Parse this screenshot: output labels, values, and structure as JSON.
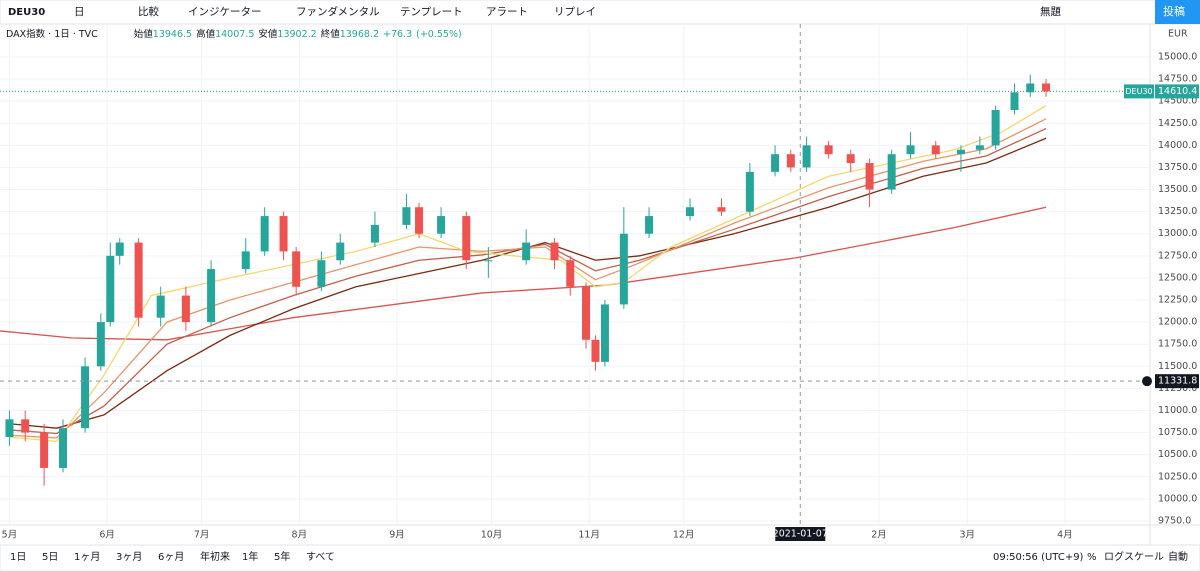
{
  "ui": {
    "toolbar": [
      "DEU30",
      "日",
      "比較",
      "インジケーター",
      "ファンダメンタル",
      "テンプレート",
      "アラート",
      "リプレイ",
      "無題",
      "投稿"
    ],
    "legend": {
      "symbol": "DAX指数 · 1日 · TVC",
      "open_label": "始値",
      "open": 13946.5,
      "high_label": "高値",
      "high": 14007.5,
      "low_label": "安値",
      "low": 13902.2,
      "close_label": "終値",
      "close": 13968.2,
      "change": "+76.3",
      "change_pct": "(+0.55%)"
    },
    "currency": "EUR",
    "ranges": [
      "1日",
      "5日",
      "1ヶ月",
      "3ヶ月",
      "6ヶ月",
      "年初来",
      "1年",
      "5年",
      "すべて"
    ],
    "clock": "09:50:56 (UTC+9)",
    "percent": "%",
    "log_scale": "ログスケール",
    "auto": "自動"
  },
  "chart_data": {
    "type": "candlestick",
    "symbol": "DEU30",
    "last_price": 14610.4,
    "crosshair": {
      "x": 251,
      "x_label": "2021-01-07",
      "y": 11331.8
    },
    "xlim": [
      -3,
      362
    ],
    "ylim": [
      9704.5,
      15373
    ],
    "xticks": [
      {
        "value": 0,
        "label": "5月"
      },
      {
        "value": 31,
        "label": "6月"
      },
      {
        "value": 61,
        "label": "7月"
      },
      {
        "value": 92,
        "label": "8月"
      },
      {
        "value": 123,
        "label": "9月"
      },
      {
        "value": 153,
        "label": "10月"
      },
      {
        "value": 184,
        "label": "11月"
      },
      {
        "value": 214,
        "label": "12月"
      },
      {
        "value": 276,
        "label": "2月"
      },
      {
        "value": 304,
        "label": "3月"
      },
      {
        "value": 335,
        "label": "4月"
      }
    ],
    "yticks": [
      {
        "value": 15000,
        "label": "15000.0"
      },
      {
        "value": 14750,
        "label": "14750.0"
      },
      {
        "value": 14500,
        "label": "14500.0"
      },
      {
        "value": 14250,
        "label": "14250.0"
      },
      {
        "value": 14000,
        "label": "14000.0"
      },
      {
        "value": 13750,
        "label": "13750.0"
      },
      {
        "value": 13500,
        "label": "13500.0"
      },
      {
        "value": 13250,
        "label": "13250.0"
      },
      {
        "value": 13000,
        "label": "13000.0"
      },
      {
        "value": 12750,
        "label": "12750.0"
      },
      {
        "value": 12500,
        "label": "12500.0"
      },
      {
        "value": 12250,
        "label": "12250.0"
      },
      {
        "value": 12000,
        "label": "12000.0"
      },
      {
        "value": 11750,
        "label": "11750.0"
      },
      {
        "value": 11500,
        "label": "11500.0"
      },
      {
        "value": 11250,
        "label": "11250.0"
      },
      {
        "value": 11000,
        "label": "11000.0"
      },
      {
        "value": 10750,
        "label": "10750.0"
      },
      {
        "value": 10500,
        "label": "10500.0"
      },
      {
        "value": 10250,
        "label": "10250.0"
      },
      {
        "value": 10000,
        "label": "10000.0"
      },
      {
        "value": 9750,
        "label": "9750.0"
      }
    ],
    "grid": true,
    "up_color": "#26a69a",
    "down_color": "#ef5350",
    "x": [
      0,
      5,
      11,
      17,
      24,
      29,
      32,
      35,
      41,
      48,
      56,
      64,
      75,
      81,
      87,
      91,
      99,
      105,
      116,
      126,
      130,
      137,
      145,
      152,
      164,
      173,
      178,
      183,
      186,
      189,
      195,
      203,
      216,
      226,
      235,
      243,
      248,
      253,
      260,
      267,
      273,
      280,
      286,
      294,
      302,
      308,
      313,
      319,
      324,
      329
    ],
    "open": [
      10700,
      10900,
      10750,
      10350,
      10800,
      11500,
      12000,
      12750,
      12900,
      12050,
      12300,
      12000,
      12600,
      12800,
      13200,
      12800,
      12400,
      12700,
      12900,
      13100,
      13300,
      13000,
      13200,
      12700,
      12700,
      12900,
      12700,
      12400,
      11800,
      11550,
      12200,
      13000,
      13200,
      13300,
      13250,
      13700,
      13900,
      13750,
      14000,
      13900,
      13800,
      13500,
      13900,
      14000,
      13900,
      13950,
      14000,
      14400,
      14600,
      14700
    ],
    "high": [
      11000,
      11000,
      10850,
      10900,
      11600,
      12100,
      12900,
      12950,
      12950,
      12400,
      12400,
      12700,
      12950,
      13300,
      13250,
      12850,
      12800,
      13000,
      13250,
      13450,
      13350,
      13300,
      13250,
      12850,
      13050,
      12950,
      12750,
      12450,
      11850,
      12250,
      13300,
      13300,
      13400,
      13400,
      13800,
      14000,
      13950,
      14100,
      14050,
      13950,
      13850,
      13950,
      14150,
      14050,
      14000,
      14100,
      14450,
      14700,
      14800,
      14750
    ],
    "low": [
      10600,
      10650,
      10150,
      10300,
      10750,
      11450,
      11950,
      12650,
      11950,
      11950,
      11900,
      11950,
      12550,
      12750,
      12700,
      12300,
      12350,
      12650,
      12850,
      13050,
      12950,
      12950,
      12600,
      12500,
      12650,
      12600,
      12300,
      11700,
      11450,
      11500,
      12150,
      12950,
      13150,
      13200,
      13200,
      13650,
      13700,
      13700,
      13850,
      13700,
      13300,
      13450,
      13850,
      13850,
      13700,
      13900,
      13950,
      14350,
      14550,
      14550
    ],
    "close": [
      10900,
      10750,
      10350,
      10800,
      11500,
      12000,
      12750,
      12900,
      12050,
      12300,
      12000,
      12600,
      12800,
      13200,
      12800,
      12400,
      12700,
      12900,
      13100,
      13300,
      13000,
      13200,
      12700,
      12700,
      12900,
      12700,
      12400,
      11800,
      11550,
      12200,
      13000,
      13200,
      13300,
      13250,
      13700,
      13900,
      13750,
      14000,
      13900,
      13800,
      13500,
      13900,
      14000,
      13900,
      13950,
      14000,
      14400,
      14600,
      14700,
      14610
    ],
    "overlays": [
      {
        "color": "#d9534f",
        "x": [
          -3,
          20,
          50,
          90,
          150,
          190,
          250,
          300,
          329
        ],
        "values": [
          11900,
          11820,
          11800,
          12050,
          12330,
          12420,
          12730,
          13070,
          13300
        ]
      },
      {
        "color": "#7b2a10",
        "x": [
          0,
          15,
          30,
          50,
          70,
          90,
          110,
          130,
          150,
          170,
          186,
          200,
          230,
          260,
          290,
          310,
          329
        ],
        "values": [
          10850,
          10800,
          10950,
          11450,
          11850,
          12150,
          12400,
          12550,
          12700,
          12900,
          12700,
          12750,
          13000,
          13300,
          13650,
          13800,
          14080
        ]
      },
      {
        "color": "#c0604a",
        "x": [
          0,
          15,
          30,
          50,
          70,
          90,
          110,
          130,
          150,
          170,
          186,
          200,
          230,
          260,
          290,
          310,
          329
        ],
        "values": [
          10780,
          10740,
          11050,
          11750,
          12050,
          12300,
          12520,
          12700,
          12760,
          12880,
          12580,
          12700,
          13050,
          13420,
          13740,
          13880,
          14190
        ]
      },
      {
        "color": "#e8956a",
        "x": [
          0,
          15,
          30,
          50,
          70,
          90,
          110,
          130,
          150,
          170,
          186,
          200,
          230,
          260,
          290,
          310,
          329
        ],
        "values": [
          10720,
          10690,
          11200,
          12000,
          12250,
          12450,
          12650,
          12850,
          12800,
          12850,
          12480,
          12670,
          13120,
          13520,
          13820,
          13960,
          14300
        ]
      },
      {
        "color": "#f5d76e",
        "x": [
          0,
          15,
          30,
          45,
          70,
          90,
          110,
          130,
          145,
          160,
          175,
          186,
          195,
          210,
          235,
          260,
          280,
          300,
          315,
          329
        ],
        "values": [
          10700,
          10650,
          11400,
          12300,
          12500,
          12650,
          12800,
          13000,
          12800,
          12750,
          12700,
          12400,
          12450,
          12850,
          13250,
          13650,
          13800,
          13950,
          14150,
          14450
        ]
      }
    ]
  }
}
